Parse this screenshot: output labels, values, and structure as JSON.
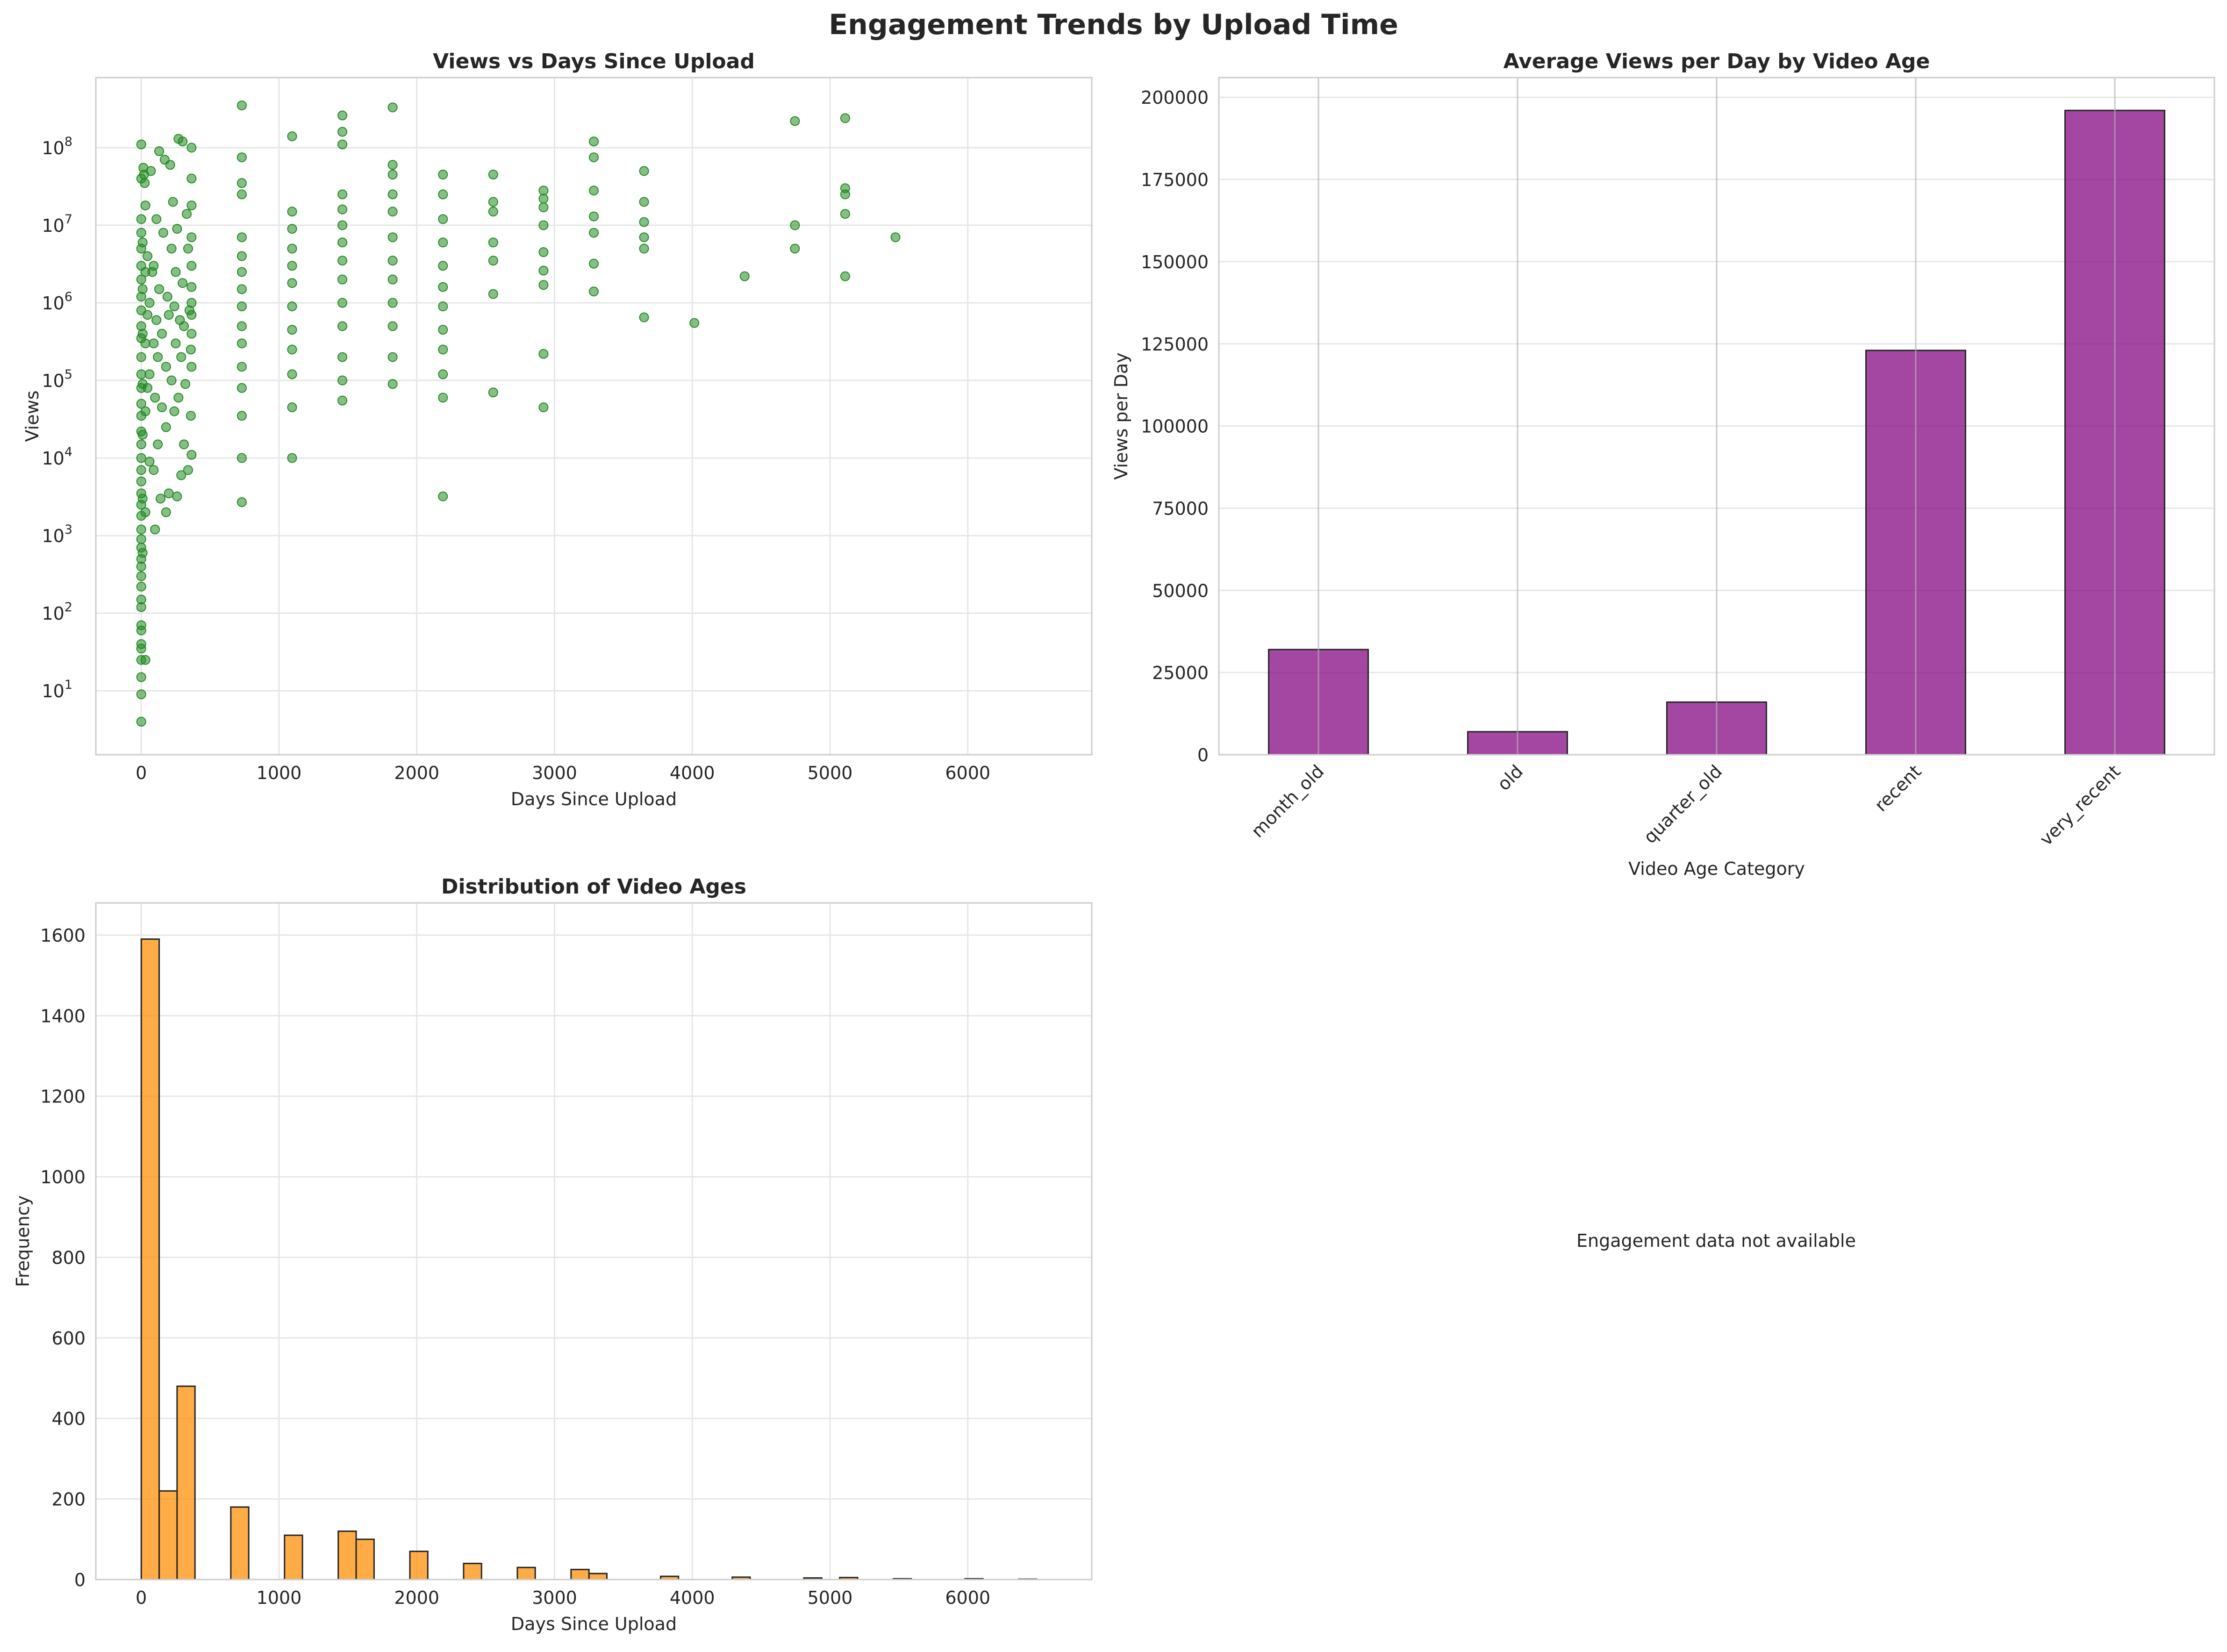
{
  "title": "Engagement Trends by Upload Time",
  "colors": {
    "scatter": "#228b22",
    "bar": "#800080",
    "hist": "#ff8c00",
    "edge": "#262626",
    "grid": "#e6e6e6",
    "spine": "#cccccc"
  },
  "chart_data": [
    {
      "type": "scatter",
      "title": "Views vs Days Since Upload",
      "xlabel": "Days Since Upload",
      "ylabel": "Views",
      "xlim": [
        -330,
        6900
      ],
      "ylim": [
        1.5,
        800000000
      ],
      "yscale": "log",
      "grid": true,
      "xticks": [
        0,
        1000,
        2000,
        3000,
        4000,
        5000,
        6000
      ],
      "yticks": [
        {
          "value": 10,
          "exp": "1"
        },
        {
          "value": 100,
          "exp": "2"
        },
        {
          "value": 1000,
          "exp": "3"
        },
        {
          "value": 10000,
          "exp": "4"
        },
        {
          "value": 100000,
          "exp": "5"
        },
        {
          "value": 1000000,
          "exp": "6"
        },
        {
          "value": 10000000,
          "exp": "7"
        },
        {
          "value": 100000000,
          "exp": "8"
        }
      ],
      "points": [
        [
          0,
          4
        ],
        [
          0,
          9
        ],
        [
          0,
          15
        ],
        [
          0,
          25
        ],
        [
          0,
          35
        ],
        [
          0,
          40
        ],
        [
          0,
          60
        ],
        [
          0,
          70
        ],
        [
          0,
          120
        ],
        [
          0,
          150
        ],
        [
          0,
          220
        ],
        [
          0,
          300
        ],
        [
          0,
          400
        ],
        [
          0,
          500
        ],
        [
          0,
          700
        ],
        [
          0,
          900
        ],
        [
          0,
          1200
        ],
        [
          0,
          1800
        ],
        [
          0,
          2500
        ],
        [
          0,
          3500
        ],
        [
          0,
          5000
        ],
        [
          0,
          7000
        ],
        [
          0,
          10000
        ],
        [
          0,
          15000
        ],
        [
          0,
          22000
        ],
        [
          0,
          35000
        ],
        [
          0,
          50000
        ],
        [
          0,
          80000
        ],
        [
          0,
          120000
        ],
        [
          0,
          200000
        ],
        [
          0,
          350000
        ],
        [
          0,
          500000
        ],
        [
          0,
          800000
        ],
        [
          0,
          1200000
        ],
        [
          0,
          2000000
        ],
        [
          0,
          3000000
        ],
        [
          0,
          5000000
        ],
        [
          0,
          8000000
        ],
        [
          0,
          12000000
        ],
        [
          0,
          40000000
        ],
        [
          0,
          110000000
        ],
        [
          10,
          600
        ],
        [
          10,
          3000
        ],
        [
          10,
          20000
        ],
        [
          10,
          90000
        ],
        [
          10,
          400000
        ],
        [
          10,
          1500000
        ],
        [
          10,
          6000000
        ],
        [
          15,
          55000000
        ],
        [
          20,
          45000000
        ],
        [
          25,
          35000000
        ],
        [
          30,
          25
        ],
        [
          30,
          2000
        ],
        [
          30,
          40000
        ],
        [
          30,
          300000
        ],
        [
          30,
          2500000
        ],
        [
          30,
          18000000
        ],
        [
          45,
          80000
        ],
        [
          45,
          700000
        ],
        [
          45,
          4000000
        ],
        [
          60,
          9000
        ],
        [
          60,
          120000
        ],
        [
          60,
          1000000
        ],
        [
          70,
          50000000
        ],
        [
          80,
          2500000
        ],
        [
          90,
          7000
        ],
        [
          90,
          300000
        ],
        [
          90,
          3000000
        ],
        [
          100,
          1200
        ],
        [
          100,
          60000
        ],
        [
          110,
          600000
        ],
        [
          110,
          12000000
        ],
        [
          120,
          15000
        ],
        [
          120,
          200000
        ],
        [
          130,
          90000000
        ],
        [
          130,
          1500000
        ],
        [
          140,
          3000
        ],
        [
          150,
          45000
        ],
        [
          150,
          400000
        ],
        [
          160,
          8000000
        ],
        [
          170,
          70000000
        ],
        [
          180,
          2000
        ],
        [
          180,
          25000
        ],
        [
          180,
          150000
        ],
        [
          190,
          1200000
        ],
        [
          200,
          3500
        ],
        [
          200,
          700000
        ],
        [
          210,
          60000000
        ],
        [
          220,
          100000
        ],
        [
          220,
          5000000
        ],
        [
          230,
          20000000
        ],
        [
          240,
          40000
        ],
        [
          240,
          900000
        ],
        [
          250,
          300000
        ],
        [
          250,
          2500000
        ],
        [
          260,
          3200
        ],
        [
          260,
          9000000
        ],
        [
          270,
          130000000
        ],
        [
          270,
          60000
        ],
        [
          280,
          600000
        ],
        [
          290,
          6000
        ],
        [
          290,
          200000
        ],
        [
          300,
          1800000
        ],
        [
          300,
          120000000
        ],
        [
          310,
          15000
        ],
        [
          310,
          500000
        ],
        [
          320,
          90000
        ],
        [
          330,
          14000000
        ],
        [
          340,
          5000000
        ],
        [
          340,
          7000
        ],
        [
          350,
          800000
        ],
        [
          360,
          35000
        ],
        [
          360,
          250000
        ],
        [
          365,
          3000000
        ],
        [
          365,
          40000000
        ],
        [
          365,
          100000000
        ],
        [
          365,
          1000000
        ],
        [
          365,
          11000
        ],
        [
          365,
          150000
        ],
        [
          365,
          400000
        ],
        [
          365,
          700000
        ],
        [
          365,
          1600000
        ],
        [
          365,
          7000000
        ],
        [
          365,
          18000000
        ],
        [
          730,
          2700
        ],
        [
          730,
          10000
        ],
        [
          730,
          35000
        ],
        [
          730,
          80000
        ],
        [
          730,
          150000
        ],
        [
          730,
          300000
        ],
        [
          730,
          500000
        ],
        [
          730,
          900000
        ],
        [
          730,
          1500000
        ],
        [
          730,
          2500000
        ],
        [
          730,
          4000000
        ],
        [
          730,
          7000000
        ],
        [
          730,
          25000000
        ],
        [
          730,
          35000000
        ],
        [
          730,
          75000000
        ],
        [
          730,
          350000000
        ],
        [
          1095,
          10000
        ],
        [
          1095,
          45000
        ],
        [
          1095,
          120000
        ],
        [
          1095,
          250000
        ],
        [
          1095,
          450000
        ],
        [
          1095,
          900000
        ],
        [
          1095,
          1800000
        ],
        [
          1095,
          3000000
        ],
        [
          1095,
          5000000
        ],
        [
          1095,
          9000000
        ],
        [
          1095,
          15000000
        ],
        [
          1095,
          140000000
        ],
        [
          1460,
          55000
        ],
        [
          1460,
          100000
        ],
        [
          1460,
          200000
        ],
        [
          1460,
          500000
        ],
        [
          1460,
          1000000
        ],
        [
          1460,
          2000000
        ],
        [
          1460,
          3500000
        ],
        [
          1460,
          6000000
        ],
        [
          1460,
          10000000
        ],
        [
          1460,
          16000000
        ],
        [
          1460,
          25000000
        ],
        [
          1460,
          110000000
        ],
        [
          1460,
          160000000
        ],
        [
          1460,
          260000000
        ],
        [
          1825,
          90000
        ],
        [
          1825,
          200000
        ],
        [
          1825,
          500000
        ],
        [
          1825,
          1000000
        ],
        [
          1825,
          2000000
        ],
        [
          1825,
          3500000
        ],
        [
          1825,
          7000000
        ],
        [
          1825,
          15000000
        ],
        [
          1825,
          25000000
        ],
        [
          1825,
          45000000
        ],
        [
          1825,
          60000000
        ],
        [
          1825,
          330000000
        ],
        [
          2190,
          3200
        ],
        [
          2190,
          60000
        ],
        [
          2190,
          120000
        ],
        [
          2190,
          250000
        ],
        [
          2190,
          450000
        ],
        [
          2190,
          900000
        ],
        [
          2190,
          1600000
        ],
        [
          2190,
          3000000
        ],
        [
          2190,
          6000000
        ],
        [
          2190,
          12000000
        ],
        [
          2190,
          25000000
        ],
        [
          2190,
          45000000
        ],
        [
          2555,
          70000
        ],
        [
          2555,
          1300000
        ],
        [
          2555,
          3500000
        ],
        [
          2555,
          6000000
        ],
        [
          2555,
          15000000
        ],
        [
          2555,
          20000000
        ],
        [
          2555,
          45000000
        ],
        [
          2920,
          45000
        ],
        [
          2920,
          220000
        ],
        [
          2920,
          1700000
        ],
        [
          2920,
          2600000
        ],
        [
          2920,
          4500000
        ],
        [
          2920,
          10000000
        ],
        [
          2920,
          17000000
        ],
        [
          2920,
          22000000
        ],
        [
          2920,
          28000000
        ],
        [
          3285,
          1400000
        ],
        [
          3285,
          3200000
        ],
        [
          3285,
          8000000
        ],
        [
          3285,
          13000000
        ],
        [
          3285,
          28000000
        ],
        [
          3285,
          75000000
        ],
        [
          3285,
          120000000
        ],
        [
          3650,
          650000
        ],
        [
          3650,
          5000000
        ],
        [
          3650,
          7000000
        ],
        [
          3650,
          11000000
        ],
        [
          3650,
          20000000
        ],
        [
          3650,
          50000000
        ],
        [
          4015,
          550000
        ],
        [
          4380,
          2200000
        ],
        [
          4745,
          5000000
        ],
        [
          4745,
          10000000
        ],
        [
          4745,
          220000000
        ],
        [
          5110,
          2200000
        ],
        [
          5110,
          14000000
        ],
        [
          5110,
          25000000
        ],
        [
          5110,
          30000000
        ],
        [
          5110,
          240000000
        ],
        [
          5475,
          7000000
        ]
      ]
    },
    {
      "type": "bar",
      "title": "Average Views per Day by Video Age",
      "xlabel": "Video Age Category",
      "ylabel": "Views per Day",
      "categories": [
        "month_old",
        "old",
        "quarter_old",
        "recent",
        "very_recent"
      ],
      "values": [
        32000,
        7000,
        16000,
        123000,
        196000
      ],
      "ylim": [
        0,
        206000
      ],
      "yticks": [
        0,
        25000,
        50000,
        75000,
        100000,
        125000,
        150000,
        175000,
        200000
      ],
      "grid": true
    },
    {
      "type": "bar",
      "title": "Distribution of Video Ages",
      "xlabel": "Days Since Upload",
      "ylabel": "Frequency",
      "bin_width": 130,
      "x_start": 0,
      "values": [
        1590,
        220,
        480,
        0,
        0,
        180,
        0,
        0,
        110,
        0,
        0,
        120,
        100,
        0,
        0,
        70,
        0,
        0,
        40,
        0,
        0,
        30,
        0,
        0,
        25,
        15,
        0,
        0,
        0,
        8,
        0,
        0,
        0,
        6,
        0,
        0,
        0,
        4,
        0,
        5,
        0,
        0,
        2,
        0,
        0,
        0,
        2,
        0,
        0,
        1,
        0
      ],
      "xlim": [
        -330,
        6900
      ],
      "ylim": [
        0,
        1680
      ],
      "xticks": [
        0,
        1000,
        2000,
        3000,
        4000,
        5000,
        6000
      ],
      "yticks": [
        0,
        200,
        400,
        600,
        800,
        1000,
        1200,
        1400,
        1600
      ],
      "grid": true
    }
  ],
  "empty_panel": {
    "message": "Engagement data not available"
  }
}
